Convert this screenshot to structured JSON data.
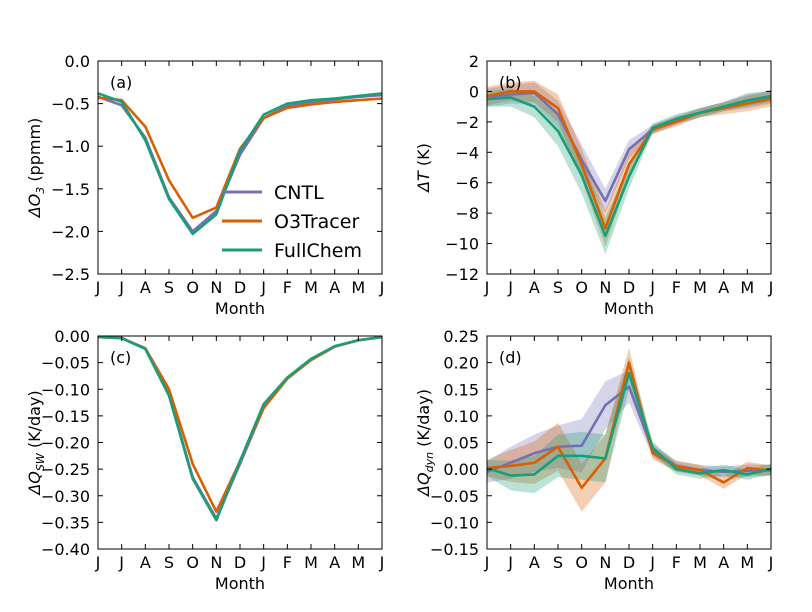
{
  "colors": {
    "CNTL": "#7570b3",
    "O3Tracer": "#d95f02",
    "FullChem": "#1b9e77"
  },
  "legend": {
    "placement": "center-right of panel (a)",
    "entries": [
      "CNTL",
      "O3Tracer",
      "FullChem"
    ]
  },
  "chart_data": [
    {
      "type": "line",
      "panel": "(a)",
      "xlabel": "Month",
      "ylabel": "ΔO3 (ppmm)",
      "ylabel_main": "ΔO",
      "ylabel_sub": "3",
      "ylabel_unit": "(ppmm)",
      "categories": [
        "J",
        "J",
        "A",
        "S",
        "O",
        "N",
        "D",
        "J",
        "F",
        "M",
        "A",
        "M",
        "J"
      ],
      "ylim": [
        -2.5,
        0.0
      ],
      "yticks": [
        0.0,
        -0.5,
        -1.0,
        -1.5,
        -2.0,
        -2.5
      ],
      "ytick_labels": [
        "0.0",
        "−0.5",
        "−1.0",
        "−1.5",
        "−2.0",
        "−2.5"
      ],
      "series": [
        {
          "name": "CNTL",
          "values": [
            -0.42,
            -0.52,
            -0.9,
            -1.6,
            -2.0,
            -1.76,
            -1.1,
            -0.67,
            -0.53,
            -0.48,
            -0.45,
            -0.42,
            -0.4
          ]
        },
        {
          "name": "O3Tracer",
          "values": [
            -0.43,
            -0.46,
            -0.77,
            -1.4,
            -1.84,
            -1.72,
            -1.03,
            -0.67,
            -0.55,
            -0.51,
            -0.48,
            -0.46,
            -0.44
          ]
        },
        {
          "name": "FullChem",
          "values": [
            -0.38,
            -0.48,
            -0.93,
            -1.62,
            -2.03,
            -1.8,
            -1.05,
            -0.63,
            -0.5,
            -0.46,
            -0.44,
            -0.41,
            -0.38
          ]
        }
      ]
    },
    {
      "type": "line",
      "panel": "(b)",
      "xlabel": "Month",
      "ylabel": "ΔT (K)",
      "ylabel_main": "ΔT",
      "ylabel_sub": "",
      "ylabel_unit": "(K)",
      "categories": [
        "J",
        "J",
        "A",
        "S",
        "O",
        "N",
        "D",
        "J",
        "F",
        "M",
        "A",
        "M",
        "J"
      ],
      "ylim": [
        -12,
        2
      ],
      "yticks": [
        2,
        0,
        -2,
        -4,
        -6,
        -8,
        -10,
        -12
      ],
      "ytick_labels": [
        "2",
        "0",
        "−2",
        "−4",
        "−6",
        "−8",
        "−10",
        "−12"
      ],
      "series": [
        {
          "name": "CNTL",
          "values": [
            -0.4,
            -0.2,
            -0.1,
            -1.5,
            -4.5,
            -7.2,
            -3.8,
            -2.5,
            -1.9,
            -1.4,
            -1.0,
            -0.6,
            -0.4
          ],
          "band": [
            0.6,
            0.6,
            0.7,
            0.9,
            1.0,
            0.8,
            0.6,
            0.3,
            0.3,
            0.3,
            0.3,
            0.5,
            0.4
          ]
        },
        {
          "name": "O3Tracer",
          "values": [
            -0.3,
            0.0,
            0.0,
            -1.1,
            -4.8,
            -9.0,
            -4.8,
            -2.5,
            -2.0,
            -1.4,
            -1.1,
            -0.8,
            -0.5
          ],
          "band": [
            0.6,
            0.6,
            0.7,
            0.9,
            1.0,
            1.2,
            0.8,
            0.3,
            0.3,
            0.3,
            0.4,
            0.5,
            0.5
          ]
        },
        {
          "name": "FullChem",
          "values": [
            -0.5,
            -0.4,
            -1.0,
            -2.6,
            -5.5,
            -9.5,
            -5.6,
            -2.4,
            -1.8,
            -1.4,
            -1.0,
            -0.6,
            -0.3
          ],
          "band": [
            0.5,
            0.6,
            0.7,
            1.0,
            1.2,
            1.2,
            0.8,
            0.3,
            0.3,
            0.3,
            0.3,
            0.4,
            0.4
          ]
        }
      ]
    },
    {
      "type": "line",
      "panel": "(c)",
      "xlabel": "Month",
      "ylabel": "ΔQSW (K/day)",
      "ylabel_main": "ΔQ",
      "ylabel_sub": "SW",
      "ylabel_unit": "(K/day)",
      "categories": [
        "J",
        "J",
        "A",
        "S",
        "O",
        "N",
        "D",
        "J",
        "F",
        "M",
        "A",
        "M",
        "J"
      ],
      "ylim": [
        -0.4,
        0.0
      ],
      "yticks": [
        0.0,
        -0.05,
        -0.1,
        -0.15,
        -0.2,
        -0.25,
        -0.3,
        -0.35,
        -0.4
      ],
      "ytick_labels": [
        "0.00",
        "−0.05",
        "−0.10",
        "−0.15",
        "−0.20",
        "−0.25",
        "−0.30",
        "−0.35",
        "−0.40"
      ],
      "series": [
        {
          "name": "CNTL",
          "values": [
            -0.002,
            -0.004,
            -0.024,
            -0.11,
            -0.265,
            -0.343,
            -0.24,
            -0.135,
            -0.08,
            -0.045,
            -0.02,
            -0.008,
            -0.002
          ]
        },
        {
          "name": "O3Tracer",
          "values": [
            -0.002,
            -0.004,
            -0.023,
            -0.1,
            -0.24,
            -0.33,
            -0.235,
            -0.135,
            -0.08,
            -0.045,
            -0.02,
            -0.008,
            -0.002
          ]
        },
        {
          "name": "FullChem",
          "values": [
            -0.002,
            -0.004,
            -0.024,
            -0.112,
            -0.268,
            -0.346,
            -0.235,
            -0.128,
            -0.078,
            -0.043,
            -0.019,
            -0.008,
            -0.002
          ]
        }
      ]
    },
    {
      "type": "line",
      "panel": "(d)",
      "xlabel": "Month",
      "ylabel": "ΔQdyn (K/day)",
      "ylabel_main": "ΔQ",
      "ylabel_sub": "dyn",
      "ylabel_unit": "(K/day)",
      "categories": [
        "J",
        "J",
        "A",
        "S",
        "O",
        "N",
        "D",
        "J",
        "F",
        "M",
        "A",
        "M",
        "J"
      ],
      "ylim": [
        -0.15,
        0.25
      ],
      "yticks": [
        0.25,
        0.2,
        0.15,
        0.1,
        0.05,
        0.0,
        -0.05,
        -0.1,
        -0.15
      ],
      "ytick_labels": [
        "0.25",
        "0.20",
        "0.15",
        "0.10",
        "0.05",
        "0.00",
        "−0.05",
        "−0.10",
        "−0.15"
      ],
      "series": [
        {
          "name": "CNTL",
          "values": [
            -0.005,
            0.012,
            0.03,
            0.042,
            0.044,
            0.12,
            0.155,
            0.035,
            0.006,
            -0.002,
            -0.005,
            -0.003,
            -0.002
          ],
          "band": [
            0.02,
            0.03,
            0.035,
            0.04,
            0.05,
            0.045,
            0.03,
            0.012,
            0.01,
            0.01,
            0.01,
            0.012,
            0.01
          ]
        },
        {
          "name": "O3Tracer",
          "values": [
            0.002,
            0.006,
            0.012,
            0.042,
            -0.035,
            0.02,
            0.2,
            0.03,
            0.005,
            -0.002,
            -0.025,
            0.002,
            -0.003
          ],
          "band": [
            0.015,
            0.03,
            0.04,
            0.045,
            0.045,
            0.045,
            0.028,
            0.012,
            0.01,
            0.01,
            0.012,
            0.012,
            0.01
          ]
        },
        {
          "name": "FullChem",
          "values": [
            0.002,
            -0.012,
            -0.01,
            0.025,
            0.025,
            0.02,
            0.18,
            0.04,
            0.0,
            -0.008,
            -0.002,
            -0.01,
            0.0
          ],
          "band": [
            0.015,
            0.028,
            0.035,
            0.04,
            0.045,
            0.045,
            0.03,
            0.012,
            0.01,
            0.01,
            0.01,
            0.01,
            0.01
          ]
        }
      ]
    }
  ]
}
